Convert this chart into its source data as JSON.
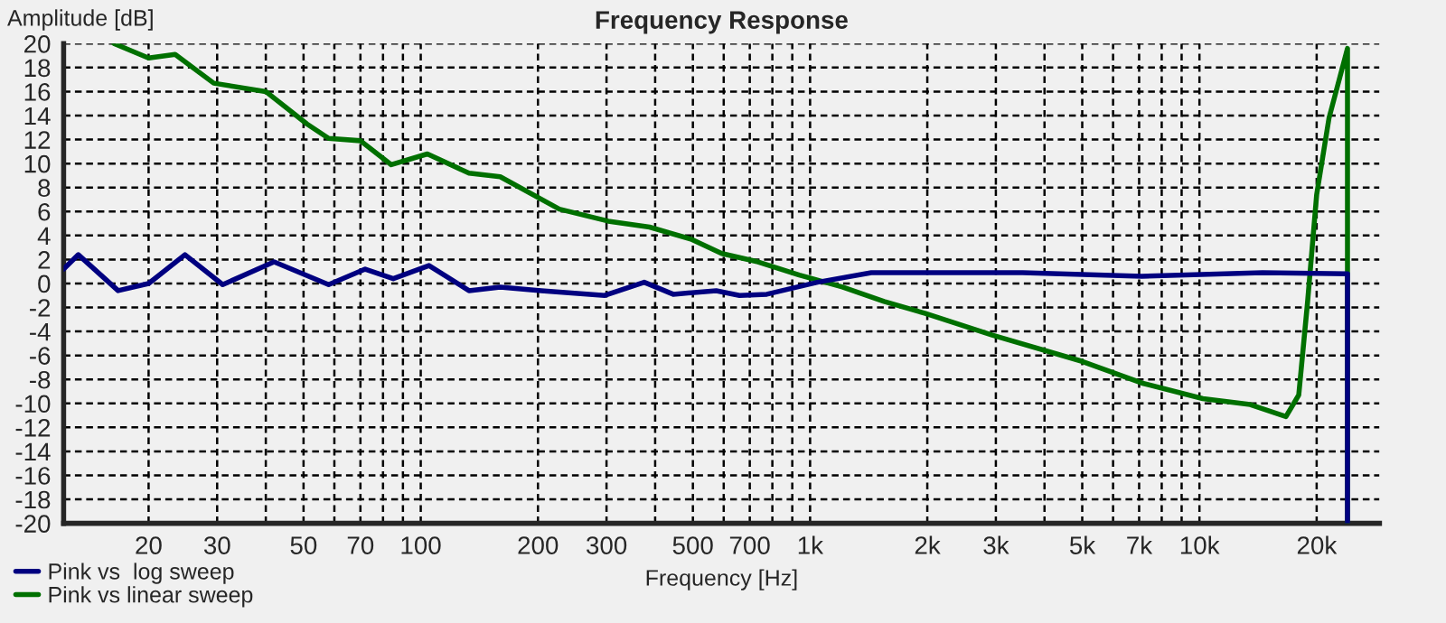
{
  "chart_data": {
    "type": "line",
    "title": "Frequency Response",
    "xlabel": "Frequency [Hz]",
    "ylabel": "Amplitude [dB]",
    "log": "x",
    "xlim": [
      12.1,
      29000
    ],
    "ylim": [
      -20,
      20
    ],
    "xticks": [
      20,
      30,
      {
        "value": 40,
        "label": null
      },
      50,
      {
        "value": 60,
        "label": null
      },
      70,
      {
        "value": 80,
        "label": null
      },
      {
        "value": 90,
        "label": null
      },
      100,
      200,
      300,
      {
        "value": 400,
        "label": null
      },
      500,
      {
        "value": 600,
        "label": null
      },
      700,
      {
        "value": 800,
        "label": null
      },
      {
        "value": 900,
        "label": null
      },
      {
        "value": 1000,
        "label": "1k"
      },
      {
        "value": 2000,
        "label": "2k"
      },
      {
        "value": 3000,
        "label": "3k"
      },
      {
        "value": 4000,
        "label": null
      },
      {
        "value": 5000,
        "label": "5k"
      },
      {
        "value": 6000,
        "label": null
      },
      {
        "value": 7000,
        "label": "7k"
      },
      {
        "value": 8000,
        "label": null
      },
      {
        "value": 9000,
        "label": null
      },
      {
        "value": 10000,
        "label": "10k"
      },
      {
        "value": 20000,
        "label": "20k"
      }
    ],
    "yticks": [
      -20,
      -18,
      -16,
      -14,
      -12,
      -10,
      -8,
      -6,
      -4,
      -2,
      0,
      2,
      4,
      6,
      8,
      10,
      12,
      14,
      16,
      18,
      20
    ],
    "grid": true,
    "legend": "bottom left",
    "line_style": "solid",
    "marker": "none",
    "series": [
      {
        "name": "Pink vs  log sweep",
        "color": "#000080",
        "x": [
          12.1,
          13.2,
          16.7,
          20,
          24.8,
          31,
          42,
          58,
          72,
          85,
          105,
          133,
          160,
          204,
          297,
          375,
          445,
          574,
          659,
          774,
          1044,
          1436,
          1977,
          3516,
          7110,
          14520,
          24000,
          24000
        ],
        "values": [
          1.2,
          2.4,
          -0.6,
          0,
          2.4,
          -0.1,
          1.8,
          -0.1,
          1.2,
          0.4,
          1.5,
          -0.6,
          -0.3,
          -0.6,
          -1.0,
          0.1,
          -0.9,
          -0.6,
          -1.0,
          -0.9,
          0.1,
          0.9,
          0.9,
          0.9,
          0.6,
          0.9,
          0.8,
          -20
        ]
      },
      {
        "name": "Pink vs linear sweep",
        "color": "#007000",
        "x": [
          16.3,
          20,
          23.4,
          29.4,
          40,
          51,
          58,
          70,
          84,
          104,
          133,
          160,
          227,
          303,
          387,
          494,
          593,
          735,
          938,
          1211,
          1549,
          1977,
          2936,
          5000,
          7110,
          10200,
          13500,
          16680,
          17990,
          18960,
          20000,
          21520,
          24000,
          24000
        ],
        "values": [
          20,
          18.8,
          19.1,
          16.7,
          16.0,
          13.3,
          12.1,
          11.9,
          9.9,
          10.8,
          9.2,
          8.9,
          6.2,
          5.2,
          4.7,
          3.7,
          2.5,
          1.8,
          0.7,
          -0.3,
          -1.5,
          -2.5,
          -4.3,
          -6.5,
          -8.3,
          -9.6,
          -10.1,
          -11.1,
          -9.3,
          -1.5,
          7.4,
          13.8,
          19.6,
          -20
        ]
      }
    ]
  }
}
